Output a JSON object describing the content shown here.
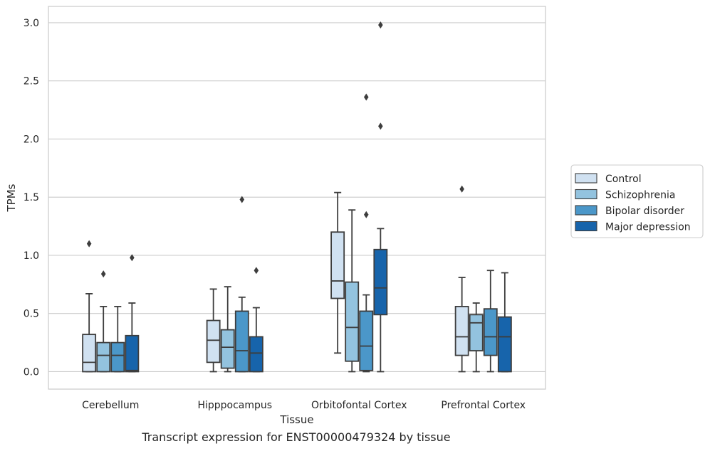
{
  "caption": "Transcript expression for ENST00000479324 by tissue",
  "chart_data": {
    "type": "boxplot",
    "xlabel": "Tissue",
    "ylabel": "TPMs",
    "ylim": [
      -0.15,
      3.14
    ],
    "yticks": [
      0.0,
      0.5,
      1.0,
      1.5,
      2.0,
      2.5,
      3.0
    ],
    "ytick_labels": [
      "0.0",
      "0.5",
      "1.0",
      "1.5",
      "2.0",
      "2.5",
      "3.0"
    ],
    "grid": "horizontal",
    "legend_position": "right",
    "categories": [
      "Cerebellum",
      "Hipppocampus",
      "Orbitofontal Cortex",
      "Prefrontal Cortex"
    ],
    "series": [
      {
        "name": "Control",
        "color": "#d0e1f1",
        "boxes": [
          {
            "whislo": 0.0,
            "q1": 0.0,
            "med": 0.08,
            "q3": 0.32,
            "whishi": 0.67,
            "fliers": [
              1.1
            ]
          },
          {
            "whislo": 0.0,
            "q1": 0.08,
            "med": 0.27,
            "q3": 0.44,
            "whishi": 0.71,
            "fliers": []
          },
          {
            "whislo": 0.16,
            "q1": 0.63,
            "med": 0.78,
            "q3": 1.2,
            "whishi": 1.54,
            "fliers": []
          },
          {
            "whislo": 0.0,
            "q1": 0.14,
            "med": 0.3,
            "q3": 0.56,
            "whishi": 0.81,
            "fliers": [
              1.57
            ]
          }
        ]
      },
      {
        "name": "Schizophrenia",
        "color": "#93c3df",
        "boxes": [
          {
            "whislo": 0.0,
            "q1": 0.0,
            "med": 0.14,
            "q3": 0.25,
            "whishi": 0.56,
            "fliers": [
              0.84
            ]
          },
          {
            "whislo": 0.0,
            "q1": 0.03,
            "med": 0.21,
            "q3": 0.36,
            "whishi": 0.73,
            "fliers": []
          },
          {
            "whislo": 0.0,
            "q1": 0.09,
            "med": 0.38,
            "q3": 0.77,
            "whishi": 1.39,
            "fliers": []
          },
          {
            "whislo": 0.0,
            "q1": 0.18,
            "med": 0.42,
            "q3": 0.49,
            "whishi": 0.59,
            "fliers": []
          }
        ]
      },
      {
        "name": "Bipolar disorder",
        "color": "#4b97c9",
        "boxes": [
          {
            "whislo": 0.0,
            "q1": 0.0,
            "med": 0.14,
            "q3": 0.25,
            "whishi": 0.56,
            "fliers": []
          },
          {
            "whislo": 0.0,
            "q1": 0.0,
            "med": 0.18,
            "q3": 0.52,
            "whishi": 0.64,
            "fliers": [
              1.48
            ]
          },
          {
            "whislo": 0.0,
            "q1": 0.01,
            "med": 0.22,
            "q3": 0.52,
            "whishi": 0.66,
            "fliers": [
              1.35,
              2.36
            ]
          },
          {
            "whislo": 0.0,
            "q1": 0.14,
            "med": 0.3,
            "q3": 0.54,
            "whishi": 0.87,
            "fliers": []
          }
        ]
      },
      {
        "name": "Major depression",
        "color": "#1764ab",
        "boxes": [
          {
            "whislo": 0.0,
            "q1": 0.0,
            "med": 0.01,
            "q3": 0.31,
            "whishi": 0.59,
            "fliers": [
              0.98
            ]
          },
          {
            "whislo": 0.0,
            "q1": 0.0,
            "med": 0.16,
            "q3": 0.3,
            "whishi": 0.55,
            "fliers": [
              0.87
            ]
          },
          {
            "whislo": 0.0,
            "q1": 0.49,
            "med": 0.72,
            "q3": 1.05,
            "whishi": 1.23,
            "fliers": [
              2.11,
              2.98
            ]
          },
          {
            "whislo": 0.0,
            "q1": 0.0,
            "med": 0.3,
            "q3": 0.47,
            "whishi": 0.85,
            "fliers": []
          }
        ]
      }
    ]
  }
}
